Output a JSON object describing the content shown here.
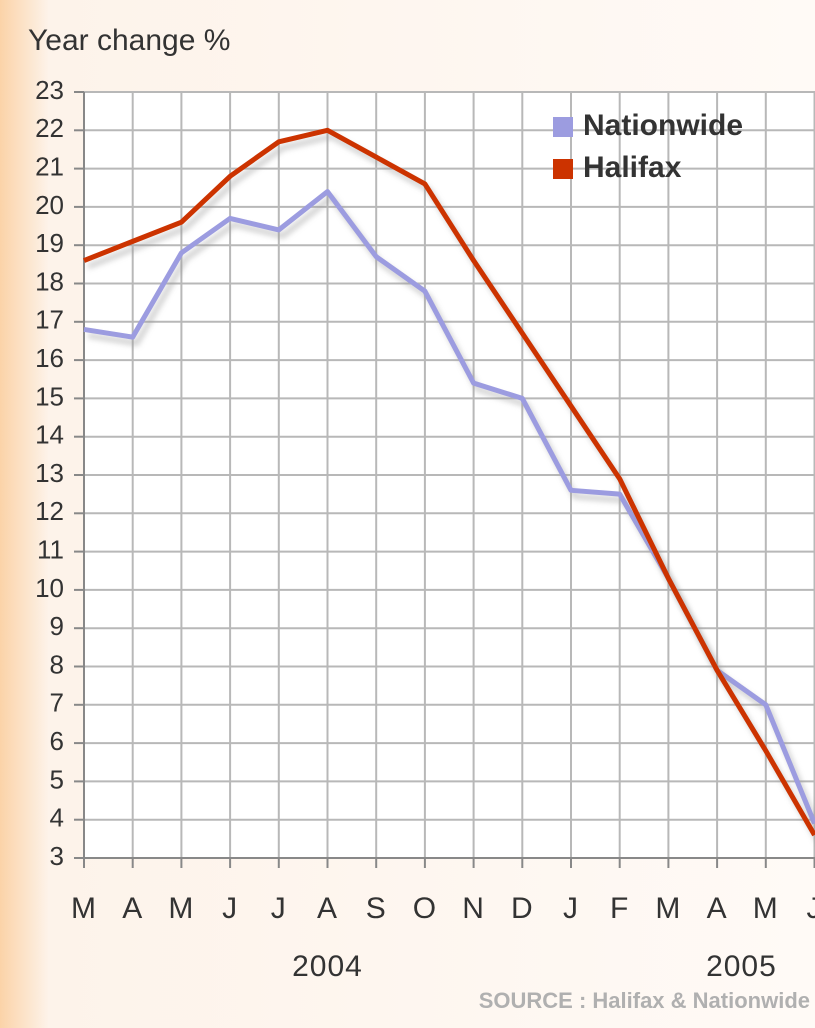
{
  "chart_data": {
    "type": "line",
    "title": "Year change %",
    "categories": [
      "M",
      "A",
      "M",
      "J",
      "J",
      "A",
      "S",
      "O",
      "N",
      "D",
      "J",
      "F",
      "M",
      "A",
      "M",
      "J"
    ],
    "year_labels": [
      "2004",
      "2005"
    ],
    "source": "SOURCE : Halifax & Nationwide",
    "series": [
      {
        "name": "Nationwide",
        "color": "#9c9ce0",
        "values": [
          16.8,
          16.6,
          18.8,
          19.7,
          19.4,
          20.4,
          18.7,
          17.8,
          15.4,
          15,
          12.6,
          12.5,
          10.3,
          7.9,
          7,
          3.9
        ]
      },
      {
        "name": "Halifax",
        "color": "#cc3300",
        "values": [
          18.6,
          19.1,
          19.6,
          20.8,
          21.7,
          22,
          21.3,
          20.6,
          18.6,
          16.7,
          14.8,
          12.9,
          10.3,
          7.9,
          5.8,
          3.6
        ]
      }
    ],
    "ylim": [
      3,
      23
    ],
    "yticks": [
      3,
      4,
      5,
      6,
      7,
      8,
      9,
      10,
      11,
      12,
      13,
      14,
      15,
      16,
      17,
      18,
      19,
      20,
      21,
      22,
      23
    ],
    "grid": true,
    "legend": "top-right"
  }
}
